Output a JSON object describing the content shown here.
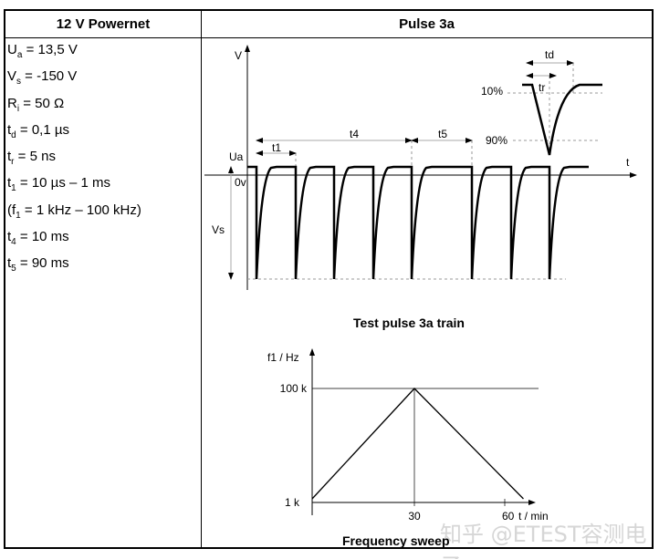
{
  "table": {
    "left_header": "12 V Powernet",
    "right_header": "Pulse 3a"
  },
  "params": [
    {
      "sym": "U",
      "sub": "a",
      "val": " = 13,5 V"
    },
    {
      "sym": "V",
      "sub": "s",
      "val": " = -150 V"
    },
    {
      "sym": "R",
      "sub": "i",
      "val": " = 50 Ω"
    },
    {
      "sym": "t",
      "sub": "d",
      "val": " = 0,1 µs"
    },
    {
      "sym": "t",
      "sub": "r",
      "val": " = 5 ns"
    },
    {
      "sym": "t",
      "sub": "1",
      "val": " = 10 µs – 1 ms"
    },
    {
      "sym": "(f",
      "sub": "1",
      "val": " = 1 kHz – 100 kHz)"
    },
    {
      "sym": "t",
      "sub": "4",
      "val": " = 10 ms"
    },
    {
      "sym": "t",
      "sub": "5",
      "val": " = 90 ms"
    }
  ],
  "pulse_diagram": {
    "y_axis": "V",
    "x_axis": "t",
    "ua": "Ua",
    "zero": "0v",
    "vs": "Vs",
    "t1": "t1",
    "t4": "t4",
    "t5": "t5",
    "td": "td",
    "tr": "tr",
    "p10": "10%",
    "p90": "90%",
    "caption": "Test pulse 3a train"
  },
  "sweep_chart": {
    "ylabel": "f1 / Hz",
    "y_ticks": [
      "1 k",
      "100 k"
    ],
    "x_ticks": [
      "30",
      "60"
    ],
    "xlabel": "t / min",
    "caption": "Frequency sweep",
    "chart_data": {
      "type": "line",
      "x": [
        0,
        30,
        62
      ],
      "y": [
        "1 k",
        "100 k",
        "1 k"
      ]
    }
  },
  "watermark": "知乎 @ETEST容测电子"
}
